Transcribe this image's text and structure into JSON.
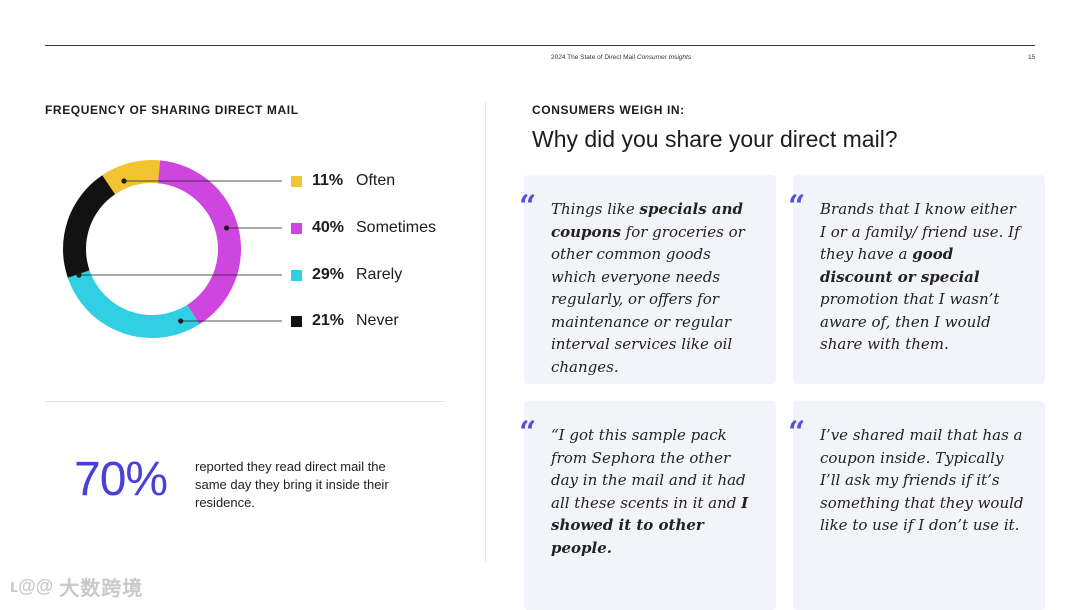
{
  "header": {
    "title_prefix": "2024 The State of Direct Mail",
    "title_italic": "Consumer Insights",
    "page_number": "15"
  },
  "left": {
    "chart_title": "FREQUENCY OF SHARING DIRECT MAIL",
    "stat_value": "70%",
    "stat_description": "reported they read direct mail the same day they bring it inside their residence."
  },
  "right": {
    "section_label": "CONSUMERS WEIGH IN:",
    "question": "Why did you share your direct mail?"
  },
  "quotes": [
    {
      "mark": "“",
      "segments": [
        {
          "text": "Things like ",
          "bold": false
        },
        {
          "text": "specials and coupons",
          "bold": true
        },
        {
          "text": " for groceries or other common goods which everyone needs regularly, or offers for maintenance or regular interval services like oil changes.",
          "bold": false
        }
      ]
    },
    {
      "mark": "“",
      "segments": [
        {
          "text": "Brands that I know either I or a family/ friend use. If they have a ",
          "bold": false
        },
        {
          "text": "good discount or special",
          "bold": true
        },
        {
          "text": " promotion that I wasn’t aware of, then I would share with them.",
          "bold": false
        }
      ]
    },
    {
      "mark": "“",
      "segments": [
        {
          "text": "“I got this sample pack from Sephora the other day in the mail and it had all these scents in it and ",
          "bold": false
        },
        {
          "text": "I showed it to other people.",
          "bold": true
        }
      ]
    },
    {
      "mark": "“",
      "segments": [
        {
          "text": "I’ve shared mail that has a coupon inside. Typically I’ll ask my friends if it’s something that they would like to use if I don’t use it.",
          "bold": false
        }
      ]
    }
  ],
  "chart_data": {
    "type": "pie",
    "title": "FREQUENCY OF SHARING DIRECT MAIL",
    "donut": true,
    "categories": [
      "Often",
      "Sometimes",
      "Rarely",
      "Never"
    ],
    "values": [
      11,
      40,
      29,
      21
    ],
    "labels": [
      "11%",
      "40%",
      "29%",
      "21%"
    ],
    "colors": [
      "#f2c431",
      "#cf45e0",
      "#31cfe4",
      "#121212"
    ],
    "legend_position": "right"
  },
  "watermark": {
    "logo": "ʟ@@",
    "text": "大数跨境"
  }
}
